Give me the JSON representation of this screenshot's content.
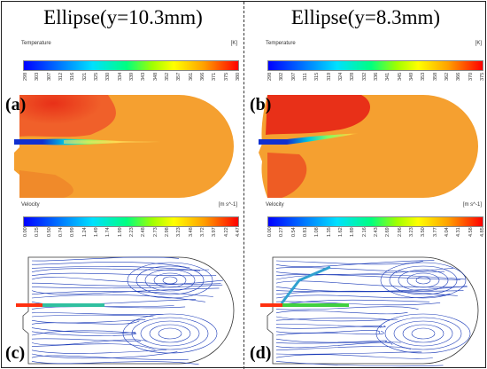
{
  "columns": [
    {
      "title": "Ellipse(y=10.3mm)"
    },
    {
      "title": "Ellipse(y=8.3mm)"
    }
  ],
  "panels": {
    "a": {
      "label": "(a)",
      "bar_title": "Temperature",
      "unit": "[K]",
      "ticks": [
        "298",
        "303",
        "307",
        "312",
        "316",
        "321",
        "325",
        "330",
        "334",
        "339",
        "343",
        "348",
        "352",
        "357",
        "361",
        "366",
        "371",
        "375",
        "380"
      ]
    },
    "b": {
      "label": "(b)",
      "bar_title": "Temperature",
      "unit": "[K]",
      "ticks": [
        "298",
        "302",
        "307",
        "311",
        "315",
        "319",
        "324",
        "328",
        "332",
        "336",
        "341",
        "345",
        "349",
        "353",
        "358",
        "362",
        "366",
        "370",
        "375"
      ]
    },
    "c": {
      "label": "(c)",
      "bar_title": "Velocity",
      "unit": "[m s^-1]",
      "ticks": [
        "0.00",
        "0.25",
        "0.50",
        "0.74",
        "0.99",
        "1.24",
        "1.49",
        "1.74",
        "1.99",
        "2.23",
        "2.48",
        "2.73",
        "2.98",
        "3.23",
        "3.48",
        "3.72",
        "3.97",
        "4.22",
        "4.47"
      ]
    },
    "d": {
      "label": "(d)",
      "bar_title": "Velocity",
      "unit": "[m s^-1]",
      "ticks": [
        "0.00",
        "0.27",
        "0.54",
        "0.81",
        "1.08",
        "1.35",
        "1.62",
        "1.89",
        "2.16",
        "2.43",
        "2.69",
        "2.96",
        "3.23",
        "3.50",
        "3.77",
        "4.04",
        "4.31",
        "4.58",
        "4.85"
      ]
    }
  },
  "colors": {
    "hot": "#e8401a",
    "warm": "#f5a030",
    "jet": "#1030d0",
    "streamline": "#1a3ab8"
  }
}
